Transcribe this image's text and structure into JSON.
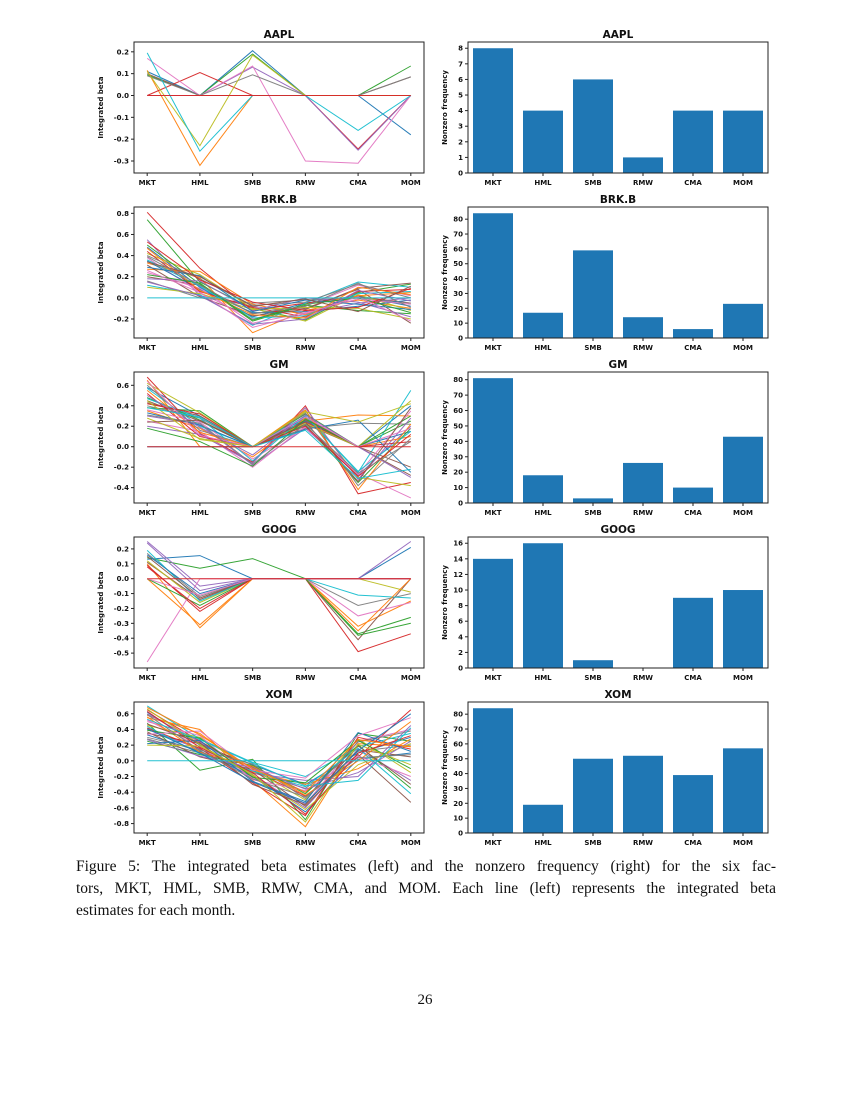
{
  "page": {
    "number": "26"
  },
  "caption": {
    "lines": [
      "Figure 5: The integrated beta estimates (left) and the nonzero frequency (right) for the six fac-",
      "tors, MKT, HML, SMB, RMW, CMA, and MOM. Each line (left) represents the integrated beta",
      "estimates for each month."
    ]
  },
  "categories": [
    "MKT",
    "HML",
    "SMB",
    "RMW",
    "CMA",
    "MOM"
  ],
  "palette": [
    "#1f77b4",
    "#ff7f0e",
    "#2ca02c",
    "#d62728",
    "#9467bd",
    "#8c564b",
    "#e377c2",
    "#7f7f7f",
    "#bcbd22",
    "#17becf"
  ],
  "bar_color": "#1f77b4",
  "axis_color": "#222222",
  "chart_data": [
    {
      "id": "aapl-line",
      "type": "line",
      "title": "AAPL",
      "ylabel": "Integrated beta",
      "ydec": 1,
      "ylim": [
        -0.355,
        0.245
      ],
      "yticks": [
        0.2,
        0.1,
        0.0,
        -0.1,
        -0.2,
        -0.3
      ],
      "series": [
        [
          0.11,
          0,
          0.205,
          0,
          0,
          -0.18
        ],
        [
          0.115,
          -0.32,
          0,
          0,
          0,
          0
        ],
        [
          0.095,
          0,
          0.19,
          0,
          0,
          0.135
        ],
        [
          0,
          0.105,
          0,
          0,
          -0.245,
          0
        ],
        [
          0,
          0,
          0.13,
          0,
          -0.25,
          0
        ],
        [
          0.1,
          0,
          0,
          0,
          0,
          0.085
        ],
        [
          0.17,
          0,
          0.135,
          -0.3,
          -0.31,
          0
        ],
        [
          0.09,
          0,
          0.095,
          0,
          0,
          0.085
        ],
        [
          0.11,
          -0.23,
          0.185,
          0,
          0,
          0
        ],
        [
          0.195,
          -0.255,
          0,
          0,
          -0.16,
          0
        ],
        {
          "c": "#d62728",
          "v": [
            0,
            0,
            0,
            0,
            0,
            0
          ]
        }
      ]
    },
    {
      "id": "aapl-bar",
      "type": "bar",
      "title": "AAPL",
      "ylabel": "Nonzero frequency",
      "ydec": 0,
      "ylim": [
        0,
        8.4
      ],
      "yticks": [
        0,
        1,
        2,
        3,
        4,
        5,
        6,
        7,
        8
      ],
      "values": [
        8,
        4,
        6,
        1,
        4,
        4
      ]
    },
    {
      "id": "brkb-line",
      "type": "line",
      "title": "BRK.B",
      "ylabel": "Integrated beta",
      "ydec": 1,
      "ylim": [
        -0.38,
        0.86
      ],
      "yticks": [
        0.8,
        0.6,
        0.4,
        0.2,
        0.0,
        -0.2
      ],
      "series": [
        [
          0.48,
          0.1,
          -0.18,
          -0.05,
          0.02,
          -0.08
        ],
        [
          0.33,
          0.19,
          -0.33,
          -0.12,
          -0.02,
          -0.1
        ],
        [
          0.74,
          0.15,
          -0.1,
          -0.21,
          0.05,
          0.13
        ],
        [
          0.81,
          0.28,
          -0.12,
          -0.05,
          0.01,
          -0.05
        ],
        [
          0.55,
          0.02,
          -0.08,
          -0.15,
          -0.05,
          0.0
        ],
        [
          0.2,
          0.12,
          -0.15,
          -0.1,
          0.08,
          -0.24
        ],
        [
          0.38,
          0.05,
          -0.2,
          -0.08,
          0.12,
          0.02
        ],
        [
          0.16,
          0.0,
          -0.05,
          -0.02,
          0.0,
          -0.05
        ],
        [
          0.42,
          0.22,
          -0.1,
          -0.22,
          0.03,
          -0.12
        ],
        [
          0.12,
          0.03,
          -0.26,
          -0.05,
          0.15,
          0.1
        ],
        [
          0.35,
          0.08,
          -0.14,
          -0.13,
          -0.08,
          -0.02
        ],
        [
          0.27,
          0.25,
          -0.06,
          -0.16,
          0.02,
          0.05
        ],
        [
          0.5,
          0.13,
          -0.22,
          -0.07,
          -0.12,
          -0.15
        ],
        [
          0.44,
          0.06,
          -0.09,
          -0.18,
          0.06,
          0.08
        ],
        [
          0.18,
          0.16,
          -0.12,
          0.0,
          -0.04,
          -0.18
        ],
        [
          0.31,
          0.01,
          -0.17,
          -0.11,
          0.09,
          0.14
        ],
        [
          0.24,
          0.09,
          -0.24,
          -0.14,
          -0.01,
          -0.06
        ],
        [
          0.4,
          0.18,
          -0.07,
          -0.04,
          0.13,
          0.0
        ],
        [
          0.1,
          0.04,
          -0.11,
          -0.09,
          -0.1,
          -0.2
        ],
        [
          0.36,
          0.11,
          -0.19,
          -0.17,
          0.04,
          0.06
        ],
        [
          0.29,
          0.21,
          -0.13,
          -0.02,
          -0.06,
          -0.11
        ],
        [
          0.47,
          0.07,
          -0.16,
          -0.19,
          0.1,
          0.03
        ],
        [
          0.22,
          0.14,
          -0.21,
          -0.06,
          0.0,
          -0.14
        ],
        [
          0.53,
          0.17,
          -0.04,
          -0.12,
          -0.09,
          0.09
        ],
        [
          0.15,
          0.02,
          -0.25,
          -0.2,
          0.07,
          -0.03
        ],
        [
          0.34,
          0.2,
          -0.08,
          -0.01,
          -0.13,
          0.11
        ],
        [
          0.26,
          0.05,
          -0.28,
          -0.15,
          0.01,
          -0.22
        ],
        [
          0.39,
          0.12,
          -0.15,
          -0.08,
          0.14,
          -0.09
        ],
        {
          "c": "#17becf",
          "v": [
            0,
            0,
            0,
            0,
            0,
            0
          ]
        }
      ]
    },
    {
      "id": "brkb-bar",
      "type": "bar",
      "title": "BRK.B",
      "ylabel": "Nonzero frequency",
      "ydec": 0,
      "ylim": [
        0,
        88.2
      ],
      "yticks": [
        0,
        10,
        20,
        30,
        40,
        50,
        60,
        70,
        80
      ],
      "values": [
        84,
        17,
        59,
        14,
        6,
        23
      ]
    },
    {
      "id": "gm-line",
      "type": "line",
      "title": "GM",
      "ylabel": "Integrated beta",
      "ydec": 1,
      "ylim": [
        -0.55,
        0.73
      ],
      "yticks": [
        0.6,
        0.4,
        0.2,
        0.0,
        -0.2,
        -0.4
      ],
      "series": [
        [
          0.58,
          0.3,
          0.0,
          0.28,
          0.0,
          0.4
        ],
        [
          0.65,
          0.0,
          0.0,
          0.25,
          0.31,
          0.3
        ],
        [
          0.38,
          0.35,
          0.0,
          0.32,
          0.0,
          0.25
        ],
        [
          0.68,
          0.13,
          -0.15,
          0.4,
          -0.46,
          -0.35
        ],
        [
          0.3,
          0.22,
          -0.18,
          0.18,
          -0.28,
          0.2
        ],
        [
          0.45,
          0.25,
          0.0,
          0.22,
          0.0,
          -0.28
        ],
        [
          0.25,
          0.15,
          -0.2,
          0.2,
          -0.26,
          -0.5
        ],
        [
          0.4,
          0.28,
          0.0,
          0.18,
          0.23,
          0.22
        ],
        [
          0.62,
          0.33,
          0.0,
          0.35,
          -0.3,
          -0.38
        ],
        [
          0.57,
          0.2,
          0.0,
          0.3,
          -0.25,
          0.55
        ],
        [
          0.0,
          0.0,
          0.0,
          0.25,
          0.0,
          0.15
        ],
        [
          0.35,
          0.18,
          -0.1,
          0.28,
          0.0,
          0.1
        ],
        [
          0.48,
          0.26,
          0.0,
          0.21,
          -0.35,
          0.18
        ],
        [
          0.52,
          0.1,
          0.0,
          0.24,
          0.0,
          0.05
        ],
        [
          0.2,
          0.12,
          -0.16,
          0.38,
          -0.32,
          0.28
        ],
        [
          0.43,
          0.3,
          0.0,
          0.26,
          0.0,
          -0.2
        ],
        [
          0.36,
          0.24,
          -0.12,
          0.19,
          -0.27,
          0.35
        ],
        [
          0.6,
          0.16,
          0.0,
          0.33,
          -0.38,
          0.08
        ],
        [
          0.28,
          0.08,
          0.0,
          0.23,
          0.0,
          0.45
        ],
        [
          0.47,
          0.28,
          -0.14,
          0.3,
          -0.24,
          0.15
        ],
        [
          0.33,
          0.21,
          0.0,
          0.17,
          0.26,
          -0.25
        ],
        [
          0.55,
          0.14,
          0.0,
          0.36,
          -0.42,
          0.22
        ],
        [
          0.18,
          0.05,
          -0.19,
          0.27,
          0.0,
          0.3
        ],
        [
          0.42,
          0.32,
          0.0,
          0.2,
          -0.29,
          0.12
        ],
        [
          0.5,
          0.19,
          -0.08,
          0.31,
          0.0,
          -0.3
        ],
        [
          0.24,
          0.26,
          0.0,
          0.24,
          -0.34,
          0.38
        ],
        [
          0.64,
          0.11,
          0.0,
          0.29,
          0.0,
          0.18
        ],
        [
          0.31,
          0.23,
          -0.17,
          0.22,
          -0.26,
          0.05
        ],
        [
          0.45,
          0.07,
          0.0,
          0.34,
          0.24,
          0.42
        ],
        [
          0.38,
          0.29,
          0.0,
          0.16,
          -0.31,
          -0.22
        ],
        {
          "c": "#d62728",
          "v": [
            0,
            0,
            0,
            0,
            0,
            0
          ]
        }
      ]
    },
    {
      "id": "gm-bar",
      "type": "bar",
      "title": "GM",
      "ylabel": "Nonzero frequency",
      "ydec": 0,
      "ylim": [
        0,
        85
      ],
      "yticks": [
        0,
        10,
        20,
        30,
        40,
        50,
        60,
        70,
        80
      ],
      "values": [
        81,
        18,
        3,
        26,
        10,
        43
      ]
    },
    {
      "id": "goog-line",
      "type": "line",
      "title": "GOOG",
      "ylabel": "Integrated beta",
      "ydec": 1,
      "ylim": [
        -0.6,
        0.28
      ],
      "yticks": [
        0.2,
        0.1,
        0.0,
        -0.1,
        -0.2,
        -0.3,
        -0.4,
        -0.5
      ],
      "series": [
        [
          0.13,
          0.155,
          0,
          0,
          0,
          0.21
        ],
        [
          0.1,
          -0.33,
          0,
          0,
          -0.32,
          -0.15
        ],
        [
          0.14,
          0.07,
          0.135,
          0,
          -0.37,
          -0.26
        ],
        [
          0.09,
          -0.22,
          0,
          0,
          -0.49,
          -0.37
        ],
        [
          0.25,
          -0.05,
          0,
          0,
          0,
          0
        ],
        [
          0.11,
          -0.14,
          0,
          0,
          -0.41,
          0
        ],
        [
          -0.56,
          0.0,
          0,
          0,
          -0.25,
          -0.16
        ],
        [
          0.17,
          -0.12,
          0,
          0,
          -0.18,
          -0.1
        ],
        [
          0.12,
          -0.16,
          0,
          0,
          0,
          -0.09
        ],
        [
          0.19,
          -0.15,
          0,
          0,
          -0.11,
          -0.13
        ],
        [
          0.16,
          -0.1,
          0,
          0,
          0,
          0
        ],
        [
          0.0,
          -0.31,
          0,
          0,
          -0.35,
          0
        ],
        [
          0.0,
          -0.18,
          0,
          0,
          -0.38,
          -0.3
        ],
        [
          0.08,
          -0.2,
          0,
          0,
          0,
          0
        ],
        [
          0.24,
          -0.08,
          0,
          0,
          0,
          0.25
        ],
        [
          0.15,
          -0.13,
          0,
          0,
          0,
          0
        ],
        [
          0.0,
          -0.11,
          0,
          0,
          0,
          0
        ],
        {
          "c": "#d62728",
          "v": [
            0,
            0,
            0,
            0,
            0,
            0
          ]
        }
      ]
    },
    {
      "id": "goog-bar",
      "type": "bar",
      "title": "GOOG",
      "ylabel": "Nonzero frequency",
      "ydec": 0,
      "ylim": [
        0,
        16.8
      ],
      "yticks": [
        0,
        2,
        4,
        6,
        8,
        10,
        12,
        14,
        16
      ],
      "values": [
        14,
        16,
        1,
        0,
        9,
        10
      ]
    },
    {
      "id": "xom-line",
      "type": "line",
      "title": "XOM",
      "ylabel": "Integrated beta",
      "ydec": 1,
      "ylim": [
        -0.92,
        0.75
      ],
      "yticks": [
        0.6,
        0.4,
        0.2,
        0.0,
        -0.2,
        -0.4,
        -0.6,
        -0.8
      ],
      "series": [
        [
          0.62,
          0.2,
          -0.05,
          -0.3,
          0.1,
          0.3
        ],
        [
          0.55,
          0.4,
          -0.25,
          -0.84,
          0.22,
          0.18
        ],
        [
          0.48,
          -0.12,
          0.02,
          -0.75,
          0.35,
          0.25
        ],
        [
          0.65,
          0.25,
          -0.12,
          -0.45,
          0.05,
          0.65
        ],
        [
          0.4,
          0.15,
          -0.18,
          -0.6,
          0.15,
          -0.25
        ],
        [
          0.35,
          0.22,
          -0.08,
          -0.4,
          0.08,
          -0.53
        ],
        [
          0.52,
          0.18,
          -0.22,
          -0.55,
          0.25,
          0.4
        ],
        [
          0.28,
          0.1,
          -0.15,
          -0.35,
          0.12,
          0.2
        ],
        [
          0.45,
          0.3,
          -0.1,
          -0.5,
          0.28,
          -0.15
        ],
        [
          0.7,
          0.28,
          -0.02,
          -0.2,
          0.18,
          0.35
        ],
        [
          0.33,
          0.12,
          -0.2,
          -0.65,
          0.02,
          0.1
        ],
        [
          0.58,
          0.35,
          -0.14,
          -0.3,
          -0.1,
          0.28
        ],
        [
          0.25,
          0.08,
          -0.06,
          -0.42,
          0.2,
          -0.35
        ],
        [
          0.42,
          0.16,
          -0.28,
          -0.7,
          0.3,
          0.15
        ],
        [
          0.6,
          0.24,
          -0.16,
          -0.25,
          -0.2,
          0.45
        ],
        [
          0.37,
          0.05,
          -0.11,
          -0.58,
          0.14,
          0.05
        ],
        [
          0.5,
          0.32,
          -0.24,
          -0.38,
          0.06,
          -0.2
        ],
        [
          0.3,
          0.14,
          -0.04,
          -0.48,
          0.24,
          0.38
        ],
        [
          0.66,
          0.21,
          -0.19,
          -0.62,
          -0.05,
          0.22
        ],
        [
          0.44,
          0.09,
          -0.13,
          -0.33,
          0.16,
          -0.42
        ],
        [
          0.22,
          0.26,
          -0.26,
          -0.52,
          0.36,
          0.12
        ],
        [
          0.56,
          0.11,
          -0.07,
          -0.44,
          0.0,
          0.5
        ],
        [
          0.39,
          0.29,
          -0.21,
          -0.28,
          0.26,
          -0.1
        ],
        [
          0.63,
          0.17,
          -0.15,
          -0.68,
          0.1,
          0.32
        ],
        [
          0.27,
          0.06,
          -0.09,
          -0.36,
          -0.15,
          0.25
        ],
        [
          0.47,
          0.23,
          -0.3,
          -0.56,
          0.19,
          -0.3
        ],
        [
          0.34,
          0.38,
          -0.12,
          -0.22,
          0.32,
          0.55
        ],
        [
          0.59,
          0.13,
          -0.23,
          -0.46,
          0.04,
          0.08
        ],
        [
          0.2,
          0.19,
          -0.17,
          -0.78,
          0.21,
          -0.05
        ],
        [
          0.53,
          0.27,
          -0.03,
          -0.32,
          -0.25,
          0.42
        ],
        [
          0.41,
          0.1,
          -0.27,
          -0.54,
          0.13,
          0.6
        ],
        [
          0.68,
          0.33,
          -0.1,
          -0.4,
          0.27,
          0.18
        ],
        {
          "c": "#17becf",
          "v": [
            0,
            0,
            0,
            0,
            0,
            0
          ]
        }
      ]
    },
    {
      "id": "xom-bar",
      "type": "bar",
      "title": "XOM",
      "ylabel": "Nonzero frequency",
      "ydec": 0,
      "ylim": [
        0,
        88.2
      ],
      "yticks": [
        0,
        10,
        20,
        30,
        40,
        50,
        60,
        70,
        80
      ],
      "values": [
        84,
        19,
        50,
        52,
        39,
        57
      ]
    }
  ]
}
